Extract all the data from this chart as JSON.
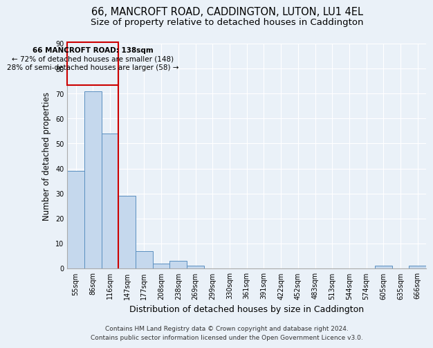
{
  "title_line1": "66, MANCROFT ROAD, CADDINGTON, LUTON, LU1 4EL",
  "title_line2": "Size of property relative to detached houses in Caddington",
  "xlabel": "Distribution of detached houses by size in Caddington",
  "ylabel": "Number of detached properties",
  "categories": [
    "55sqm",
    "86sqm",
    "116sqm",
    "147sqm",
    "177sqm",
    "208sqm",
    "238sqm",
    "269sqm",
    "299sqm",
    "330sqm",
    "361sqm",
    "391sqm",
    "422sqm",
    "452sqm",
    "483sqm",
    "513sqm",
    "544sqm",
    "574sqm",
    "605sqm",
    "635sqm",
    "666sqm"
  ],
  "values": [
    39,
    71,
    54,
    29,
    7,
    2,
    3,
    1,
    0,
    0,
    0,
    0,
    0,
    0,
    0,
    0,
    0,
    0,
    1,
    0,
    1
  ],
  "bar_color": "#c5d8ed",
  "bar_edge_color": "#5a8fc0",
  "vline_x": 2.5,
  "vline_color": "#cc0000",
  "annotation_title": "66 MANCROFT ROAD: 138sqm",
  "annotation_line1": "← 72% of detached houses are smaller (148)",
  "annotation_line2": "28% of semi-detached houses are larger (58) →",
  "annotation_box_color": "#cc0000",
  "ylim": [
    0,
    90
  ],
  "yticks": [
    0,
    10,
    20,
    30,
    40,
    50,
    60,
    70,
    80,
    90
  ],
  "footer_line1": "Contains HM Land Registry data © Crown copyright and database right 2024.",
  "footer_line2": "Contains public sector information licensed under the Open Government Licence v3.0.",
  "bg_color": "#eaf1f8",
  "plot_bg_color": "#eaf1f8",
  "grid_color": "#ffffff",
  "title_fontsize": 10.5,
  "subtitle_fontsize": 9.5,
  "axis_label_fontsize": 8.5,
  "tick_fontsize": 7,
  "footer_fontsize": 6.5,
  "ann_fontsize": 7.5
}
